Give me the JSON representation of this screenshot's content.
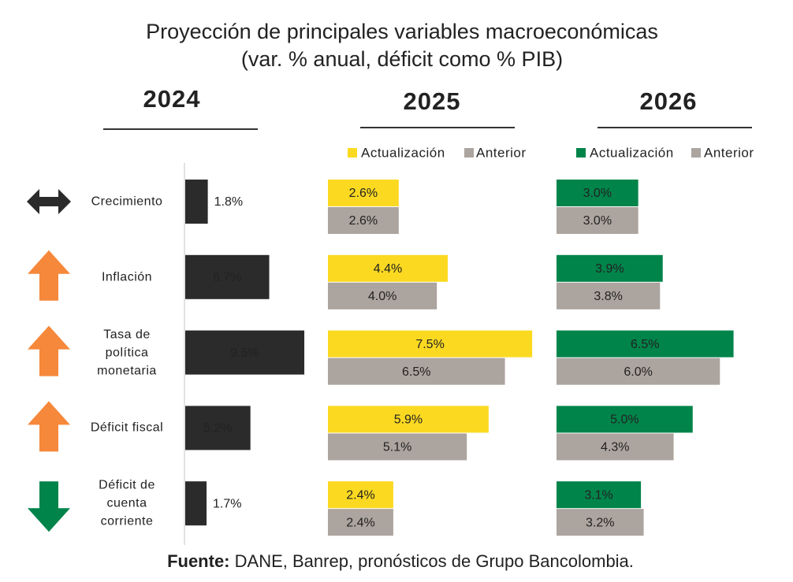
{
  "title": "Proyección de principales variables macroeconómicas",
  "subtitle": "(var. % anual, déficit como % PIB)",
  "source_label": "Fuente:",
  "source": "DANE, Banrep, pronósticos de Grupo Bancolombia.",
  "chart_data": [
    {
      "type": "bar",
      "orientation": "horizontal",
      "title": "2024",
      "categories": [
        "Crecimiento",
        "Inflación",
        "Tasa de\npolítica\nmonetaria",
        "Déficit fiscal",
        "Déficit de\ncuenta\ncorriente"
      ],
      "trend": [
        "both",
        "up",
        "up",
        "up",
        "down"
      ],
      "trend_colors": [
        "#2b2b2b",
        "#f5883b",
        "#f5883b",
        "#f5883b",
        "#00844a"
      ],
      "values": [
        1.8,
        6.7,
        9.5,
        5.2,
        1.7
      ],
      "value_labels": [
        "1.8%",
        "6.7%",
        "9.5%",
        "5.2%",
        "1.7%"
      ],
      "color": "#2b2b2b"
    },
    {
      "type": "bar",
      "orientation": "horizontal",
      "title": "2025",
      "series": [
        {
          "name": "Actualización",
          "color": "#fbd921",
          "values": [
            2.6,
            4.4,
            7.5,
            5.9,
            2.4
          ],
          "value_labels": [
            "2.6%",
            "4.4%",
            "7.5%",
            "5.9%",
            "2.4%"
          ]
        },
        {
          "name": "Anterior",
          "color": "#aca49e",
          "values": [
            2.6,
            4.0,
            6.5,
            5.1,
            2.4
          ],
          "value_labels": [
            "2.6%",
            "4.0%",
            "6.5%",
            "5.1%",
            "2.4%"
          ]
        }
      ]
    },
    {
      "type": "bar",
      "orientation": "horizontal",
      "title": "2026",
      "series": [
        {
          "name": "Actualización",
          "color": "#00844a",
          "values": [
            3.0,
            3.9,
            6.5,
            5.0,
            3.1
          ],
          "value_labels": [
            "3.0%",
            "3.9%",
            "6.5%",
            "5.0%",
            "3.1%"
          ]
        },
        {
          "name": "Anterior",
          "color": "#aca49e",
          "values": [
            3.0,
            3.8,
            6.0,
            4.3,
            3.2
          ],
          "value_labels": [
            "3.0%",
            "3.8%",
            "6.0%",
            "4.3%",
            "3.2%"
          ]
        }
      ]
    }
  ]
}
